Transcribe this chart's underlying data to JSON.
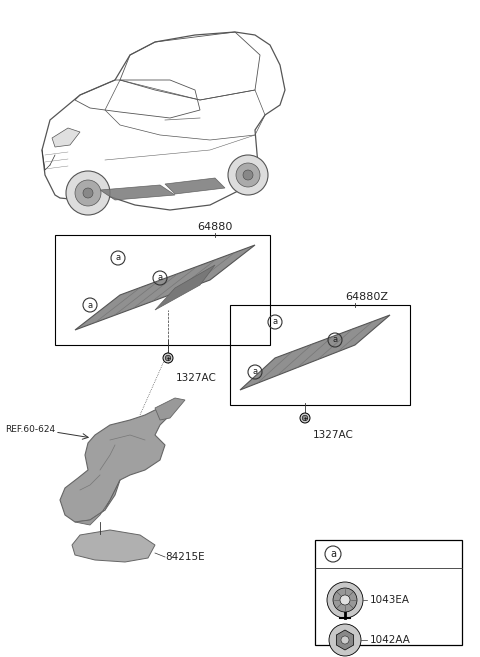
{
  "bg_color": "#ffffff",
  "fig_width": 4.8,
  "fig_height": 6.57,
  "dpi": 100,
  "label_64880": "64880",
  "label_64880Z": "64880Z",
  "label_ref": "REF.60-624",
  "label_1327AC_1": "1327AC",
  "label_1327AC_2": "1327AC",
  "label_84215E": "84215E",
  "label_1043EA": "1043EA",
  "label_1042AA": "1042AA",
  "gray_panel": "#909090",
  "gray_dark": "#707070",
  "gray_light": "#b0b0b0",
  "gray_subframe": "#999999",
  "line_color": "#333333",
  "text_color": "#222222"
}
